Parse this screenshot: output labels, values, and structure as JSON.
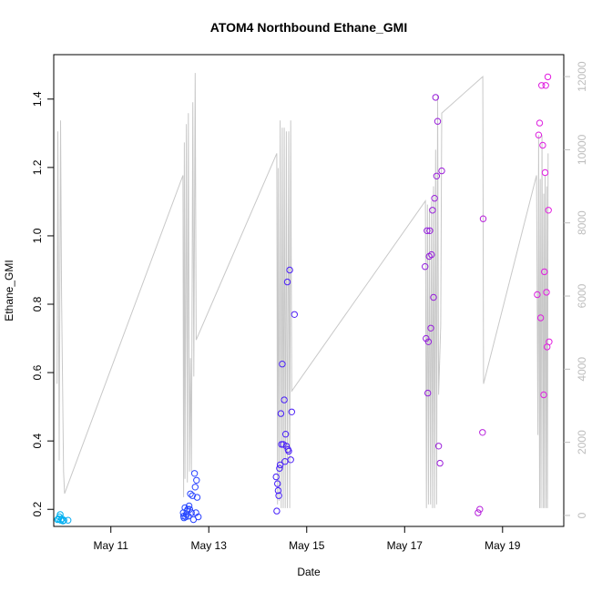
{
  "chart_data": {
    "type": "scatter",
    "title": "ATOM4 Northbound Ethane_GMI",
    "xlabel": "Date",
    "ylabel": "Ethane_GMI",
    "x_ticks": [
      {
        "label": "May 11",
        "value": "2018-05-11"
      },
      {
        "label": "May 13",
        "value": "2018-05-13"
      },
      {
        "label": "May 15",
        "value": "2018-05-15"
      },
      {
        "label": "May 17",
        "value": "2018-05-17"
      },
      {
        "label": "May 19",
        "value": "2018-05-19"
      }
    ],
    "xlim": [
      "2018-05-09T20:00",
      "2018-05-20T06:00"
    ],
    "ylim": [
      0.15,
      1.53
    ],
    "y_ticks": [
      0.2,
      0.4,
      0.6,
      0.8,
      1.0,
      1.2,
      1.4
    ],
    "y_tick_labels": [
      "0.2",
      "0.4",
      "0.6",
      "0.8",
      "1.0",
      "1.2",
      "1.4"
    ],
    "y2_ticks": [
      0,
      2000,
      4000,
      6000,
      8000,
      10000,
      12000
    ],
    "y2_tick_labels": [
      "0",
      "2000",
      "4000",
      "6000",
      "8000",
      "10000",
      "12000"
    ],
    "y2lim": [
      -300,
      12600
    ],
    "grid": false,
    "colors": {
      "gradient": [
        "#00b4f0",
        "#1f5bff",
        "#3a1fff",
        "#6a1fe8",
        "#a21fd9",
        "#e31ee0"
      ],
      "altitude_line": "#c8c8c8"
    },
    "points": [
      {
        "x": "2018-05-09T21:50",
        "y": 0.17
      },
      {
        "x": "2018-05-09T22:20",
        "y": 0.172
      },
      {
        "x": "2018-05-09T22:50",
        "y": 0.178
      },
      {
        "x": "2018-05-09T23:10",
        "y": 0.185
      },
      {
        "x": "2018-05-09T23:30",
        "y": 0.168
      },
      {
        "x": "2018-05-10T00:00",
        "y": 0.172
      },
      {
        "x": "2018-05-10T00:30",
        "y": 0.166
      },
      {
        "x": "2018-05-10T01:00",
        "y": 0.168
      },
      {
        "x": "2018-05-10T03:00",
        "y": 0.168
      },
      {
        "x": "2018-05-12T11:30",
        "y": 0.19
      },
      {
        "x": "2018-05-12T11:40",
        "y": 0.18
      },
      {
        "x": "2018-05-12T11:50",
        "y": 0.175
      },
      {
        "x": "2018-05-12T12:20",
        "y": 0.205
      },
      {
        "x": "2018-05-12T12:40",
        "y": 0.178
      },
      {
        "x": "2018-05-12T13:00",
        "y": 0.185
      },
      {
        "x": "2018-05-12T13:20",
        "y": 0.195
      },
      {
        "x": "2018-05-12T13:40",
        "y": 0.2
      },
      {
        "x": "2018-05-12T14:00",
        "y": 0.18
      },
      {
        "x": "2018-05-12T14:20",
        "y": 0.21
      },
      {
        "x": "2018-05-12T14:40",
        "y": 0.2
      },
      {
        "x": "2018-05-12T15:00",
        "y": 0.245
      },
      {
        "x": "2018-05-12T15:30",
        "y": 0.19
      },
      {
        "x": "2018-05-12T16:00",
        "y": 0.24
      },
      {
        "x": "2018-05-12T16:30",
        "y": 0.17
      },
      {
        "x": "2018-05-12T17:00",
        "y": 0.305
      },
      {
        "x": "2018-05-12T17:20",
        "y": 0.265
      },
      {
        "x": "2018-05-12T17:40",
        "y": 0.19
      },
      {
        "x": "2018-05-12T18:00",
        "y": 0.285
      },
      {
        "x": "2018-05-12T18:20",
        "y": 0.235
      },
      {
        "x": "2018-05-12T18:50",
        "y": 0.178
      },
      {
        "x": "2018-05-14T09:00",
        "y": 0.295
      },
      {
        "x": "2018-05-14T09:20",
        "y": 0.195
      },
      {
        "x": "2018-05-14T09:40",
        "y": 0.275
      },
      {
        "x": "2018-05-14T10:00",
        "y": 0.255
      },
      {
        "x": "2018-05-14T10:20",
        "y": 0.24
      },
      {
        "x": "2018-05-14T10:40",
        "y": 0.32
      },
      {
        "x": "2018-05-14T11:00",
        "y": 0.33
      },
      {
        "x": "2018-05-14T11:20",
        "y": 0.48
      },
      {
        "x": "2018-05-14T11:40",
        "y": 0.39
      },
      {
        "x": "2018-05-14T12:00",
        "y": 0.625
      },
      {
        "x": "2018-05-14T12:30",
        "y": 0.39
      },
      {
        "x": "2018-05-14T13:00",
        "y": 0.52
      },
      {
        "x": "2018-05-14T13:20",
        "y": 0.34
      },
      {
        "x": "2018-05-14T13:40",
        "y": 0.42
      },
      {
        "x": "2018-05-14T14:00",
        "y": 0.385
      },
      {
        "x": "2018-05-14T14:30",
        "y": 0.865
      },
      {
        "x": "2018-05-14T14:50",
        "y": 0.375
      },
      {
        "x": "2018-05-14T15:10",
        "y": 0.37
      },
      {
        "x": "2018-05-14T15:40",
        "y": 0.9
      },
      {
        "x": "2018-05-14T16:10",
        "y": 0.345
      },
      {
        "x": "2018-05-14T16:40",
        "y": 0.485
      },
      {
        "x": "2018-05-14T18:00",
        "y": 0.77
      },
      {
        "x": "2018-05-17T10:00",
        "y": 0.91
      },
      {
        "x": "2018-05-17T10:30",
        "y": 0.7
      },
      {
        "x": "2018-05-17T11:00",
        "y": 1.015
      },
      {
        "x": "2018-05-17T11:20",
        "y": 0.54
      },
      {
        "x": "2018-05-17T11:40",
        "y": 0.69
      },
      {
        "x": "2018-05-17T12:00",
        "y": 0.94
      },
      {
        "x": "2018-05-17T12:20",
        "y": 1.015
      },
      {
        "x": "2018-05-17T12:50",
        "y": 0.73
      },
      {
        "x": "2018-05-17T13:10",
        "y": 0.945
      },
      {
        "x": "2018-05-17T13:40",
        "y": 1.075
      },
      {
        "x": "2018-05-17T14:10",
        "y": 0.82
      },
      {
        "x": "2018-05-17T14:40",
        "y": 1.11
      },
      {
        "x": "2018-05-17T15:10",
        "y": 1.405
      },
      {
        "x": "2018-05-17T15:40",
        "y": 1.175
      },
      {
        "x": "2018-05-17T16:10",
        "y": 1.335
      },
      {
        "x": "2018-05-17T16:40",
        "y": 0.385
      },
      {
        "x": "2018-05-17T17:20",
        "y": 0.335
      },
      {
        "x": "2018-05-17T18:10",
        "y": 1.19
      },
      {
        "x": "2018-05-18T12:00",
        "y": 0.19
      },
      {
        "x": "2018-05-18T12:50",
        "y": 0.2
      },
      {
        "x": "2018-05-18T14:10",
        "y": 0.425
      },
      {
        "x": "2018-05-18T14:30",
        "y": 1.05
      },
      {
        "x": "2018-05-19T17:00",
        "y": 0.828
      },
      {
        "x": "2018-05-19T17:40",
        "y": 1.295
      },
      {
        "x": "2018-05-19T18:10",
        "y": 1.33
      },
      {
        "x": "2018-05-19T18:40",
        "y": 0.76
      },
      {
        "x": "2018-05-19T19:10",
        "y": 1.44
      },
      {
        "x": "2018-05-19T19:40",
        "y": 1.265
      },
      {
        "x": "2018-05-19T20:10",
        "y": 0.535
      },
      {
        "x": "2018-05-19T20:30",
        "y": 0.895
      },
      {
        "x": "2018-05-19T20:50",
        "y": 1.185
      },
      {
        "x": "2018-05-19T21:10",
        "y": 1.44
      },
      {
        "x": "2018-05-19T21:30",
        "y": 0.835
      },
      {
        "x": "2018-05-19T21:50",
        "y": 0.675
      },
      {
        "x": "2018-05-19T22:10",
        "y": 1.465
      },
      {
        "x": "2018-05-19T22:30",
        "y": 1.075
      },
      {
        "x": "2018-05-19T22:50",
        "y": 0.69
      }
    ],
    "altitude_line": [
      [
        "2018-05-09T21:40",
        3600
      ],
      [
        "2018-05-09T22:00",
        10500
      ],
      [
        "2018-05-09T22:40",
        1500
      ],
      [
        "2018-05-09T23:20",
        10800
      ],
      [
        "2018-05-09T23:50",
        6000
      ],
      [
        "2018-05-10T00:50",
        1200
      ],
      [
        "2018-05-10T01:20",
        600
      ],
      [
        "2018-05-12T11:20",
        9300
      ],
      [
        "2018-05-12T11:40",
        500
      ],
      [
        "2018-05-12T12:00",
        10200
      ],
      [
        "2018-05-12T12:20",
        1000
      ],
      [
        "2018-05-12T13:00",
        10700
      ],
      [
        "2018-05-12T13:30",
        900
      ],
      [
        "2018-05-12T14:00",
        11000
      ],
      [
        "2018-05-12T14:30",
        1200
      ],
      [
        "2018-05-12T15:00",
        4300
      ],
      [
        "2018-05-12T15:30",
        1200
      ],
      [
        "2018-05-12T16:10",
        11300
      ],
      [
        "2018-05-12T16:40",
        3800
      ],
      [
        "2018-05-12T17:20",
        12100
      ],
      [
        "2018-05-12T17:50",
        4800
      ],
      [
        "2018-05-14T09:20",
        9900
      ],
      [
        "2018-05-14T09:40",
        300
      ],
      [
        "2018-05-14T10:00",
        9500
      ],
      [
        "2018-05-14T10:30",
        400
      ],
      [
        "2018-05-14T11:00",
        10800
      ],
      [
        "2018-05-14T11:30",
        200
      ],
      [
        "2018-05-14T12:00",
        10600
      ],
      [
        "2018-05-14T12:30",
        200
      ],
      [
        "2018-05-14T13:00",
        10600
      ],
      [
        "2018-05-14T13:30",
        200
      ],
      [
        "2018-05-14T14:00",
        10500
      ],
      [
        "2018-05-14T14:30",
        200
      ],
      [
        "2018-05-14T15:10",
        10500
      ],
      [
        "2018-05-14T15:40",
        200
      ],
      [
        "2018-05-14T16:10",
        10800
      ],
      [
        "2018-05-14T16:40",
        3400
      ],
      [
        "2018-05-17T10:10",
        8600
      ],
      [
        "2018-05-17T10:40",
        200
      ],
      [
        "2018-05-17T11:10",
        8500
      ],
      [
        "2018-05-17T11:40",
        300
      ],
      [
        "2018-05-17T12:10",
        8400
      ],
      [
        "2018-05-17T12:40",
        300
      ],
      [
        "2018-05-17T13:10",
        8600
      ],
      [
        "2018-05-17T13:40",
        200
      ],
      [
        "2018-05-17T14:10",
        9000
      ],
      [
        "2018-05-17T14:40",
        200
      ],
      [
        "2018-05-17T15:10",
        10000
      ],
      [
        "2018-05-17T15:40",
        300
      ],
      [
        "2018-05-17T16:10",
        11500
      ],
      [
        "2018-05-17T16:40",
        3300
      ],
      [
        "2018-05-17T17:40",
        5200
      ],
      [
        "2018-05-17T18:10",
        11000
      ],
      [
        "2018-05-18T14:20",
        12000
      ],
      [
        "2018-05-18T14:40",
        3600
      ],
      [
        "2018-05-19T16:40",
        9300
      ],
      [
        "2018-05-19T17:20",
        2200
      ],
      [
        "2018-05-19T17:40",
        10400
      ],
      [
        "2018-05-19T18:10",
        200
      ],
      [
        "2018-05-19T18:30",
        9200
      ],
      [
        "2018-05-19T18:50",
        200
      ],
      [
        "2018-05-19T19:20",
        10400
      ],
      [
        "2018-05-19T19:50",
        200
      ],
      [
        "2018-05-19T20:10",
        8800
      ],
      [
        "2018-05-19T20:30",
        200
      ],
      [
        "2018-05-19T20:50",
        9300
      ],
      [
        "2018-05-19T21:20",
        200
      ],
      [
        "2018-05-19T21:40",
        9000
      ],
      [
        "2018-05-19T22:00",
        200
      ],
      [
        "2018-05-19T22:20",
        9900
      ]
    ]
  }
}
